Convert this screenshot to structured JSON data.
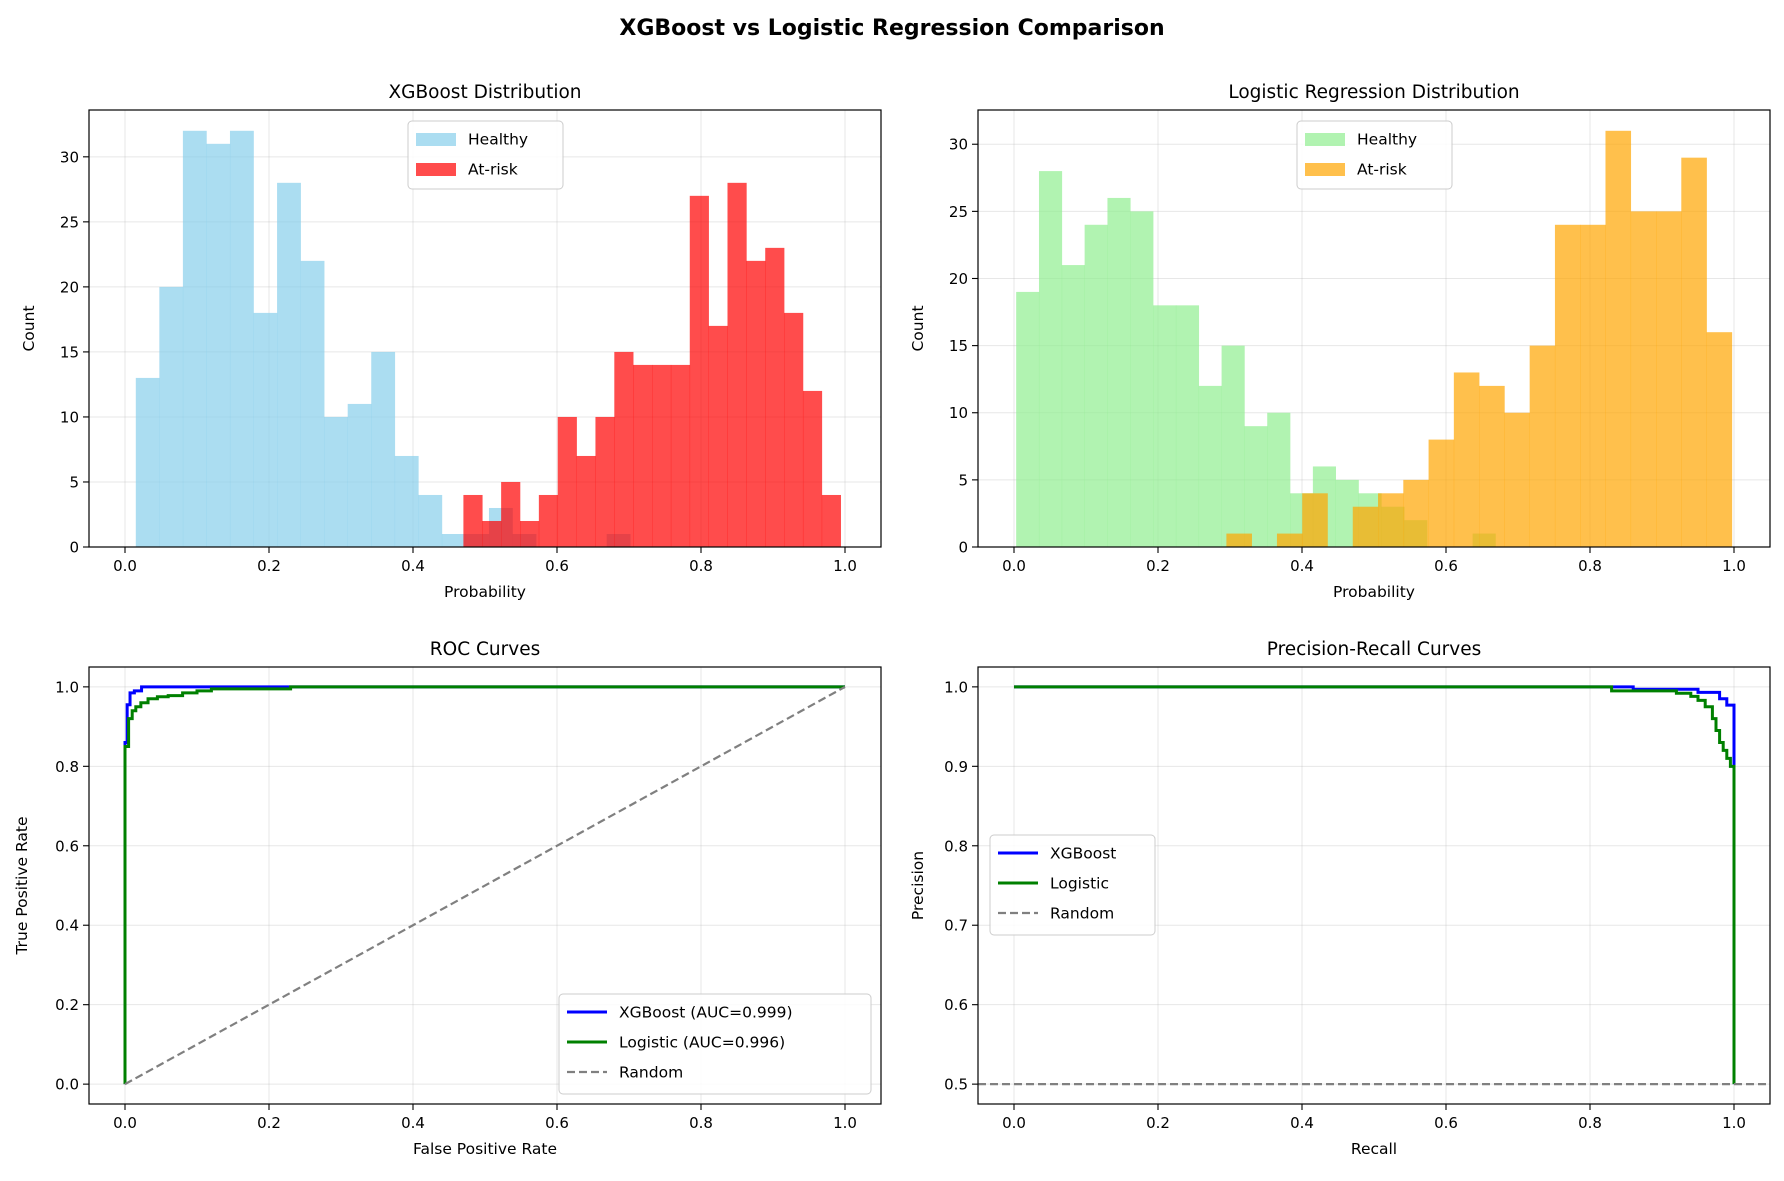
{
  "figure": {
    "title": "XGBoost vs Logistic Regression Comparison"
  },
  "chart_data": [
    {
      "type": "bar",
      "title": "XGBoost Distribution",
      "xlabel": "Probability",
      "ylabel": "Count",
      "xlim": [
        -0.05,
        1.05
      ],
      "ylim": [
        0,
        33.6
      ],
      "xticks": [
        "0.0",
        "0.2",
        "0.4",
        "0.6",
        "0.8",
        "1.0"
      ],
      "yticks": [
        "0",
        "5",
        "10",
        "15",
        "20",
        "25",
        "30"
      ],
      "grid": true,
      "legend": "upper center",
      "series": [
        {
          "name": "Healthy",
          "color": "#87CEEB",
          "opacity": 0.7,
          "bin_start": 0.015,
          "bin_width": 0.0327,
          "values": [
            13,
            20,
            32,
            31,
            32,
            18,
            28,
            22,
            10,
            11,
            15,
            7,
            4,
            1,
            1,
            3,
            1,
            0,
            0,
            0,
            1
          ]
        },
        {
          "name": "At-risk",
          "color": "#FF0000",
          "opacity": 0.7,
          "bin_start": 0.47,
          "bin_width": 0.0262,
          "values": [
            4,
            2,
            5,
            2,
            4,
            10,
            7,
            10,
            15,
            14,
            14,
            14,
            27,
            17,
            28,
            22,
            23,
            18,
            12,
            4
          ]
        }
      ]
    },
    {
      "type": "bar",
      "title": "Logistic Regression Distribution",
      "xlabel": "Probability",
      "ylabel": "Count",
      "xlim": [
        -0.05,
        1.05
      ],
      "ylim": [
        0,
        32.55
      ],
      "xticks": [
        "0.0",
        "0.2",
        "0.4",
        "0.6",
        "0.8",
        "1.0"
      ],
      "yticks": [
        "0",
        "5",
        "10",
        "15",
        "20",
        "25",
        "30"
      ],
      "grid": true,
      "legend": "upper center",
      "series": [
        {
          "name": "Healthy",
          "color": "#90EE90",
          "opacity": 0.7,
          "bin_start": 0.003,
          "bin_width": 0.0317,
          "values": [
            19,
            28,
            21,
            24,
            26,
            25,
            18,
            18,
            12,
            15,
            9,
            10,
            4,
            6,
            5,
            4,
            3,
            2,
            0,
            0,
            1
          ]
        },
        {
          "name": "At-risk",
          "color": "#FFA500",
          "opacity": 0.7,
          "bin_start": 0.295,
          "bin_width": 0.0351,
          "values": [
            1,
            0,
            1,
            4,
            0,
            3,
            4,
            5,
            8,
            13,
            12,
            10,
            15,
            24,
            24,
            31,
            25,
            25,
            29,
            16
          ]
        }
      ]
    },
    {
      "type": "line",
      "title": "ROC Curves",
      "xlabel": "False Positive Rate",
      "ylabel": "True Positive Rate",
      "xlim": [
        -0.05,
        1.05
      ],
      "ylim": [
        -0.05,
        1.05
      ],
      "xticks": [
        "0.0",
        "0.2",
        "0.4",
        "0.6",
        "0.8",
        "1.0"
      ],
      "yticks": [
        "0.0",
        "0.2",
        "0.4",
        "0.6",
        "0.8",
        "1.0"
      ],
      "grid": true,
      "legend": "lower right",
      "series": [
        {
          "name": "XGBoost (AUC=0.999)",
          "color": "#0000FF",
          "x": [
            0,
            0,
            0.003,
            0.003,
            0.007,
            0.007,
            0.013,
            0.013,
            0.023,
            0.023,
            1.0
          ],
          "y": [
            0,
            0.86,
            0.86,
            0.955,
            0.955,
            0.985,
            0.985,
            0.99,
            0.99,
            1.0,
            1.0
          ]
        },
        {
          "name": "Logistic (AUC=0.996)",
          "color": "#008000",
          "x": [
            0,
            0,
            0.005,
            0.005,
            0.01,
            0.01,
            0.015,
            0.015,
            0.022,
            0.022,
            0.032,
            0.032,
            0.045,
            0.045,
            0.06,
            0.06,
            0.08,
            0.08,
            0.1,
            0.1,
            0.12,
            0.12,
            0.23,
            0.23,
            1.0
          ],
          "y": [
            0,
            0.85,
            0.85,
            0.92,
            0.92,
            0.94,
            0.94,
            0.95,
            0.95,
            0.96,
            0.96,
            0.97,
            0.97,
            0.975,
            0.975,
            0.978,
            0.978,
            0.985,
            0.985,
            0.99,
            0.99,
            0.995,
            0.995,
            1.0,
            1.0
          ]
        },
        {
          "name": "Random",
          "color": "#808080",
          "dashed": true,
          "x": [
            0,
            1
          ],
          "y": [
            0,
            1
          ]
        }
      ]
    },
    {
      "type": "line",
      "title": "Precision-Recall Curves",
      "xlabel": "Recall",
      "ylabel": "Precision",
      "xlim": [
        -0.05,
        1.05
      ],
      "ylim": [
        0.475,
        1.025
      ],
      "xticks": [
        "0.0",
        "0.2",
        "0.4",
        "0.6",
        "0.8",
        "1.0"
      ],
      "yticks": [
        "0.5",
        "0.6",
        "0.7",
        "0.8",
        "0.9",
        "1.0"
      ],
      "grid": true,
      "legend": "center left",
      "series": [
        {
          "name": "XGBoost",
          "color": "#0000FF",
          "x": [
            0,
            0.86,
            0.86,
            0.95,
            0.95,
            0.98,
            0.98,
            0.99,
            0.99,
            1.0,
            1.0,
            1.0
          ],
          "y": [
            1.0,
            1.0,
            0.997,
            0.997,
            0.993,
            0.993,
            0.985,
            0.985,
            0.977,
            0.977,
            0.8,
            0.5
          ]
        },
        {
          "name": "Logistic",
          "color": "#008000",
          "x": [
            0,
            0.83,
            0.83,
            0.92,
            0.92,
            0.94,
            0.94,
            0.95,
            0.95,
            0.96,
            0.96,
            0.97,
            0.97,
            0.975,
            0.975,
            0.98,
            0.98,
            0.985,
            0.985,
            0.99,
            0.99,
            0.995,
            0.995,
            1.0,
            1.0
          ],
          "y": [
            1.0,
            1.0,
            0.995,
            0.995,
            0.992,
            0.992,
            0.988,
            0.988,
            0.983,
            0.983,
            0.975,
            0.975,
            0.96,
            0.96,
            0.945,
            0.945,
            0.93,
            0.93,
            0.92,
            0.92,
            0.91,
            0.91,
            0.9,
            0.9,
            0.5
          ]
        },
        {
          "name": "Random",
          "color": "#808080",
          "dashed": true,
          "x": [
            -0.05,
            1.05
          ],
          "y": [
            0.5,
            0.5
          ]
        }
      ]
    }
  ]
}
